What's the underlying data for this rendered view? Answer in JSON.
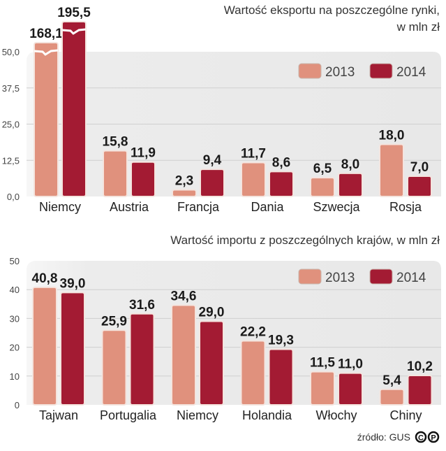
{
  "colors": {
    "2013": "#e0917d",
    "2014": "#a31b33",
    "grid": "#cfcfcf",
    "panel": "#e9e9e9"
  },
  "chart_data": [
    {
      "type": "bar",
      "title": "Wartość eksportu na poszczególne rynki,",
      "subtitle": "w mln zł",
      "categories": [
        "Niemcy",
        "Austria",
        "Francja",
        "Dania",
        "Szwecja",
        "Rosja"
      ],
      "series": [
        {
          "name": "2013",
          "values": [
            168.1,
            15.8,
            2.3,
            11.7,
            6.5,
            18.0
          ],
          "labels": [
            "168,1",
            "15,8",
            "2,3",
            "11,7",
            "6,5",
            "18,0"
          ]
        },
        {
          "name": "2014",
          "values": [
            195.5,
            11.9,
            9.4,
            8.6,
            8.0,
            7.0
          ],
          "labels": [
            "195,5",
            "11,9",
            "9,4",
            "8,6",
            "8,0",
            "7,0"
          ]
        }
      ],
      "ylim": [
        0,
        50
      ],
      "yticks": [
        0,
        12.5,
        25,
        37.5,
        50
      ],
      "ytick_labels": [
        "0,0",
        "12,5",
        "25,0",
        "37,5",
        "50,0"
      ],
      "axis_break": true,
      "grid": true,
      "legend": "top-right"
    },
    {
      "type": "bar",
      "title": "Wartość importu z poszczególnych krajów, w mln zł",
      "categories": [
        "Tajwan",
        "Portugalia",
        "Niemcy",
        "Holandia",
        "Włochy",
        "Chiny"
      ],
      "series": [
        {
          "name": "2013",
          "values": [
            40.8,
            25.9,
            34.6,
            22.2,
            11.5,
            5.4
          ],
          "labels": [
            "40,8",
            "25,9",
            "34,6",
            "22,2",
            "11,5",
            "5,4"
          ]
        },
        {
          "name": "2014",
          "values": [
            39.0,
            31.6,
            29.0,
            19.3,
            11.0,
            10.2
          ],
          "labels": [
            "39,0",
            "31,6",
            "29,0",
            "19,3",
            "11,0",
            "10,2"
          ]
        }
      ],
      "ylim": [
        0,
        50
      ],
      "yticks": [
        0,
        10,
        20,
        30,
        40,
        50
      ],
      "ytick_labels": [
        "0",
        "10",
        "20",
        "30",
        "40",
        "50"
      ],
      "grid": true,
      "legend": "top-right"
    }
  ],
  "footer": {
    "source": "źródło: GUS",
    "logo": "PAP"
  }
}
